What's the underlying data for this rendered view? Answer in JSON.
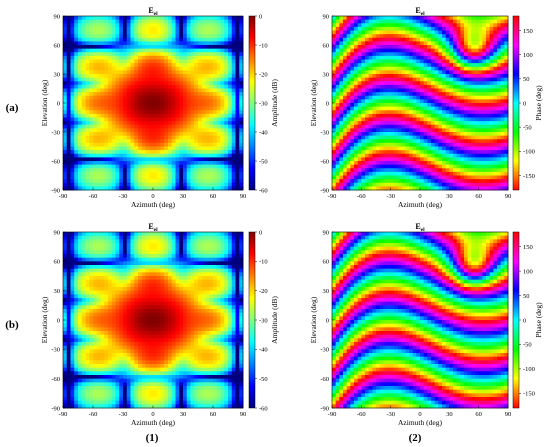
{
  "figure": {
    "row_labels": [
      "(a)",
      "(b)"
    ],
    "column_labels": [
      "(1)",
      "(2)"
    ]
  },
  "colors": {
    "jet": [
      "#00007f",
      "#0000ff",
      "#007fff",
      "#00ffff",
      "#7fff7f",
      "#ffff00",
      "#ff7f00",
      "#ff0000",
      "#7f0000"
    ],
    "hsv": [
      "#ff0000",
      "#ffff00",
      "#00ff00",
      "#00ffff",
      "#0000ff",
      "#ff00ff",
      "#ff0000"
    ]
  },
  "chart_data": [
    {
      "id": "a1",
      "type": "heatmap",
      "title": "E",
      "title_sub": "el",
      "xlabel": "Azimuth (deg)",
      "ylabel": "Elevation (deg)",
      "xlim": [
        -90,
        90
      ],
      "ylim": [
        -90,
        90
      ],
      "xticks": [
        "-90",
        "-60",
        "-30",
        "0",
        "30",
        "60",
        "90"
      ],
      "yticks": [
        "-90",
        "-60",
        "-30",
        "0",
        "30",
        "60",
        "90"
      ],
      "colorbar": {
        "label": "Amplitude (dB)",
        "colormap": "jet",
        "range": [
          -60,
          0
        ],
        "ticks": [
          "0",
          "-10",
          "-20",
          "-30",
          "-40",
          "-50",
          "-60"
        ]
      },
      "peak_amplitude_db": 0,
      "peak_at": [
        0,
        0
      ]
    },
    {
      "id": "a2",
      "type": "heatmap",
      "title": "E",
      "title_sub": "el",
      "xlabel": "Azimuth (deg)",
      "ylabel": "Elevation (deg)",
      "xlim": [
        -90,
        90
      ],
      "ylim": [
        -90,
        90
      ],
      "xticks": [
        "-90",
        "-60",
        "-30",
        "0",
        "30",
        "60",
        "90"
      ],
      "yticks": [
        "-90",
        "-60",
        "-30",
        "0",
        "30",
        "60",
        "90"
      ],
      "colorbar": {
        "label": "Phase (deg)",
        "colormap": "hsv",
        "range": [
          -180,
          180
        ],
        "ticks": [
          "150",
          "100",
          "50",
          "0",
          "-50",
          "-100",
          "-150"
        ]
      }
    },
    {
      "id": "b1",
      "type": "heatmap",
      "title": "E",
      "title_sub": "el",
      "xlabel": "Azimuth (deg)",
      "ylabel": "Elevation (deg)",
      "xlim": [
        -90,
        90
      ],
      "ylim": [
        -90,
        90
      ],
      "xticks": [
        "-90",
        "-60",
        "-30",
        "0",
        "30",
        "60",
        "90"
      ],
      "yticks": [
        "-90",
        "-60",
        "-30",
        "0",
        "30",
        "60",
        "90"
      ],
      "colorbar": {
        "label": "Amplitude (dB)",
        "colormap": "jet",
        "range": [
          -60,
          0
        ],
        "ticks": [
          "0",
          "-10",
          "-20",
          "-30",
          "-40",
          "-50",
          "-60"
        ]
      },
      "peak_amplitude_db": 0,
      "peak_at": [
        0,
        0
      ]
    },
    {
      "id": "b2",
      "type": "heatmap",
      "title": "E",
      "title_sub": "el",
      "xlabel": "Azimuth (deg)",
      "ylabel": "Elevation (deg)",
      "xlim": [
        -90,
        90
      ],
      "ylim": [
        -90,
        90
      ],
      "xticks": [
        "-90",
        "-60",
        "-30",
        "0",
        "30",
        "60",
        "90"
      ],
      "yticks": [
        "-90",
        "-60",
        "-30",
        "0",
        "30",
        "60",
        "90"
      ],
      "colorbar": {
        "label": "Phase (deg)",
        "colormap": "hsv",
        "range": [
          -180,
          180
        ],
        "ticks": [
          "150",
          "100",
          "50",
          "0",
          "-50",
          "-100",
          "-150"
        ]
      }
    }
  ]
}
